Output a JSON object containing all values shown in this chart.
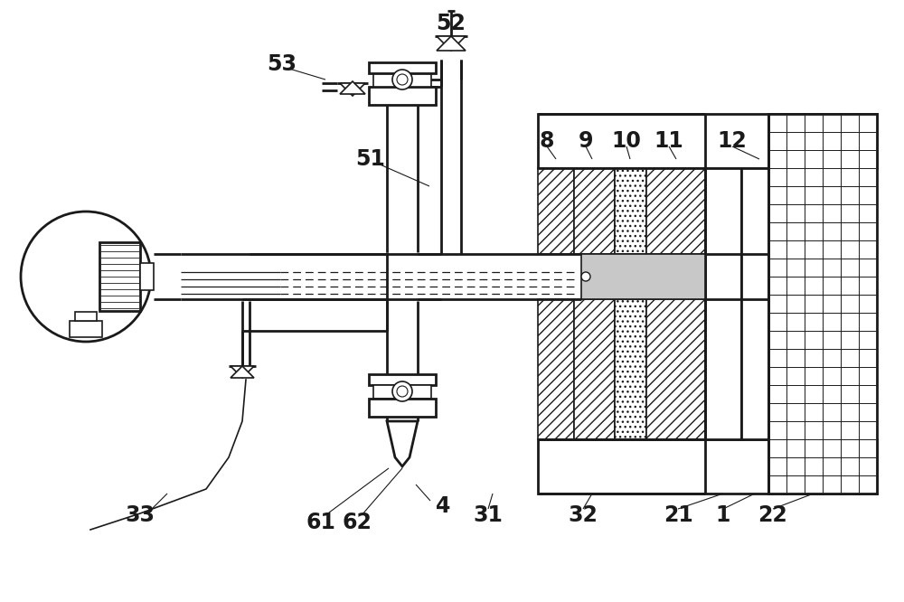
{
  "bg_color": "#ffffff",
  "line_color": "#1a1a1a",
  "gray_fill": "#c8c8c8",
  "figsize": [
    10.0,
    6.66
  ],
  "dpi": 100,
  "label_fontsize": 17
}
